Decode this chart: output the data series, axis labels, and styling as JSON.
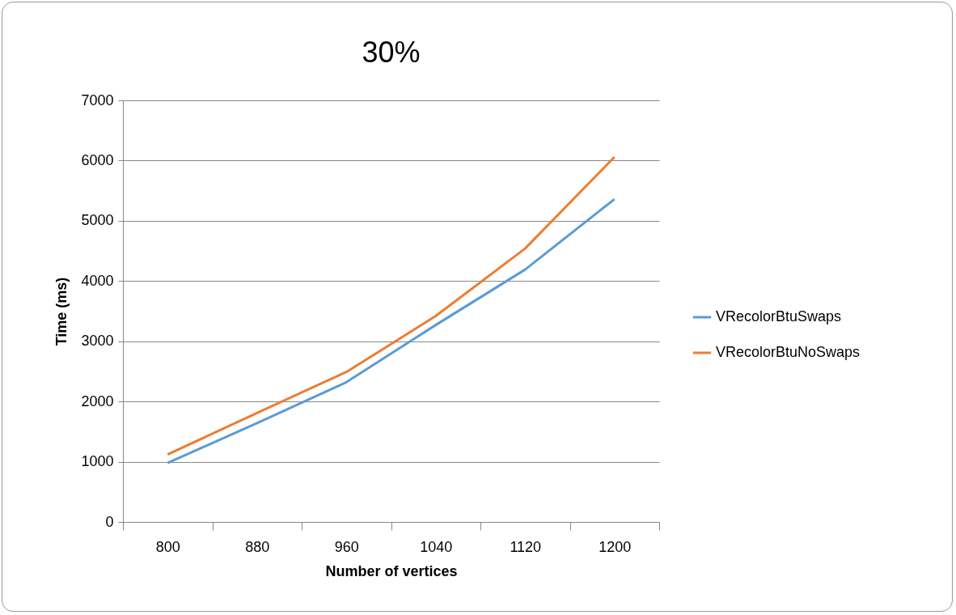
{
  "chart_data": {
    "type": "line",
    "title": "30%",
    "xlabel": "Number of vertices",
    "ylabel": "Time (ms)",
    "categories": [
      "800",
      "880",
      "960",
      "1040",
      "1120",
      "1200"
    ],
    "series": [
      {
        "name": "VRecolorBtuSwaps",
        "color": "#5b9bd5",
        "values": [
          980,
          1640,
          2320,
          3270,
          4190,
          5360
        ]
      },
      {
        "name": "VRecolorBtuNoSwaps",
        "color": "#ed7d31",
        "values": [
          1120,
          1810,
          2490,
          3420,
          4540,
          6060
        ]
      }
    ],
    "ylim": [
      0,
      7000
    ],
    "yticks": [
      0,
      1000,
      2000,
      3000,
      4000,
      5000,
      6000,
      7000
    ],
    "grid": "y",
    "legend": "right",
    "marker": "none",
    "line_style": "solid"
  }
}
